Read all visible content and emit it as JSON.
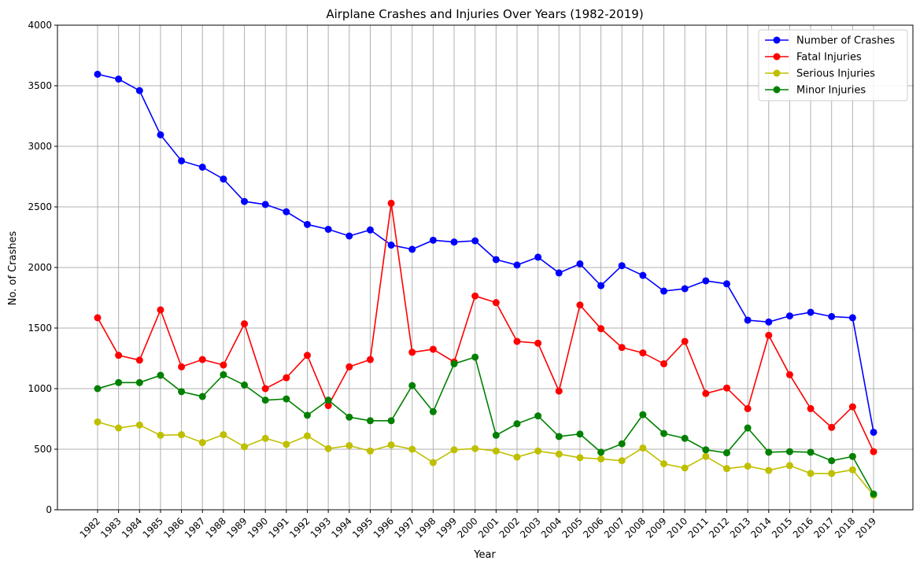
{
  "chart_data": {
    "type": "line",
    "title": "Airplane Crashes and Injuries Over Years (1982-2019)",
    "xlabel": "Year",
    "ylabel": "No. of Crashes",
    "ylim": [
      0,
      4000
    ],
    "yticks": [
      0,
      500,
      1000,
      1500,
      2000,
      2500,
      3000,
      3500,
      4000
    ],
    "grid": true,
    "legend_position": "top-right",
    "x": [
      1982,
      1983,
      1984,
      1985,
      1986,
      1987,
      1988,
      1989,
      1990,
      1991,
      1992,
      1993,
      1994,
      1995,
      1996,
      1997,
      1998,
      1999,
      2000,
      2001,
      2002,
      2003,
      2004,
      2005,
      2006,
      2007,
      2008,
      2009,
      2010,
      2011,
      2012,
      2013,
      2014,
      2015,
      2016,
      2017,
      2018,
      2019
    ],
    "series": [
      {
        "name": "Number of Crashes",
        "color": "#0000ff",
        "values": [
          3595,
          3555,
          3460,
          3095,
          2880,
          2828,
          2730,
          2545,
          2520,
          2460,
          2355,
          2315,
          2260,
          2310,
          2185,
          2150,
          2225,
          2210,
          2220,
          2065,
          2020,
          2085,
          1955,
          2030,
          1850,
          2015,
          1935,
          1805,
          1825,
          1890,
          1865,
          1565,
          1550,
          1600,
          1630,
          1595,
          1585,
          640
        ]
      },
      {
        "name": "Fatal Injuries",
        "color": "#ff0000",
        "values": [
          1585,
          1275,
          1235,
          1650,
          1180,
          1240,
          1195,
          1535,
          1000,
          1090,
          1275,
          860,
          1180,
          1240,
          2530,
          1300,
          1325,
          1220,
          1765,
          1710,
          1390,
          1375,
          980,
          1690,
          1495,
          1340,
          1295,
          1205,
          1390,
          960,
          1005,
          835,
          1440,
          1115,
          835,
          680,
          850,
          480
        ]
      },
      {
        "name": "Serious Injuries",
        "color": "#bfbf00",
        "values": [
          725,
          675,
          700,
          615,
          620,
          555,
          620,
          520,
          590,
          540,
          610,
          505,
          530,
          485,
          535,
          500,
          390,
          495,
          505,
          485,
          435,
          485,
          460,
          430,
          420,
          405,
          510,
          380,
          345,
          440,
          340,
          360,
          325,
          365,
          300,
          300,
          330,
          120
        ]
      },
      {
        "name": "Minor Injuries",
        "color": "#008000",
        "values": [
          1000,
          1050,
          1050,
          1110,
          975,
          935,
          1115,
          1030,
          905,
          915,
          780,
          905,
          765,
          735,
          735,
          1025,
          810,
          1205,
          1260,
          615,
          710,
          775,
          605,
          625,
          475,
          545,
          785,
          630,
          590,
          495,
          470,
          675,
          475,
          480,
          475,
          405,
          440,
          130
        ]
      }
    ]
  }
}
